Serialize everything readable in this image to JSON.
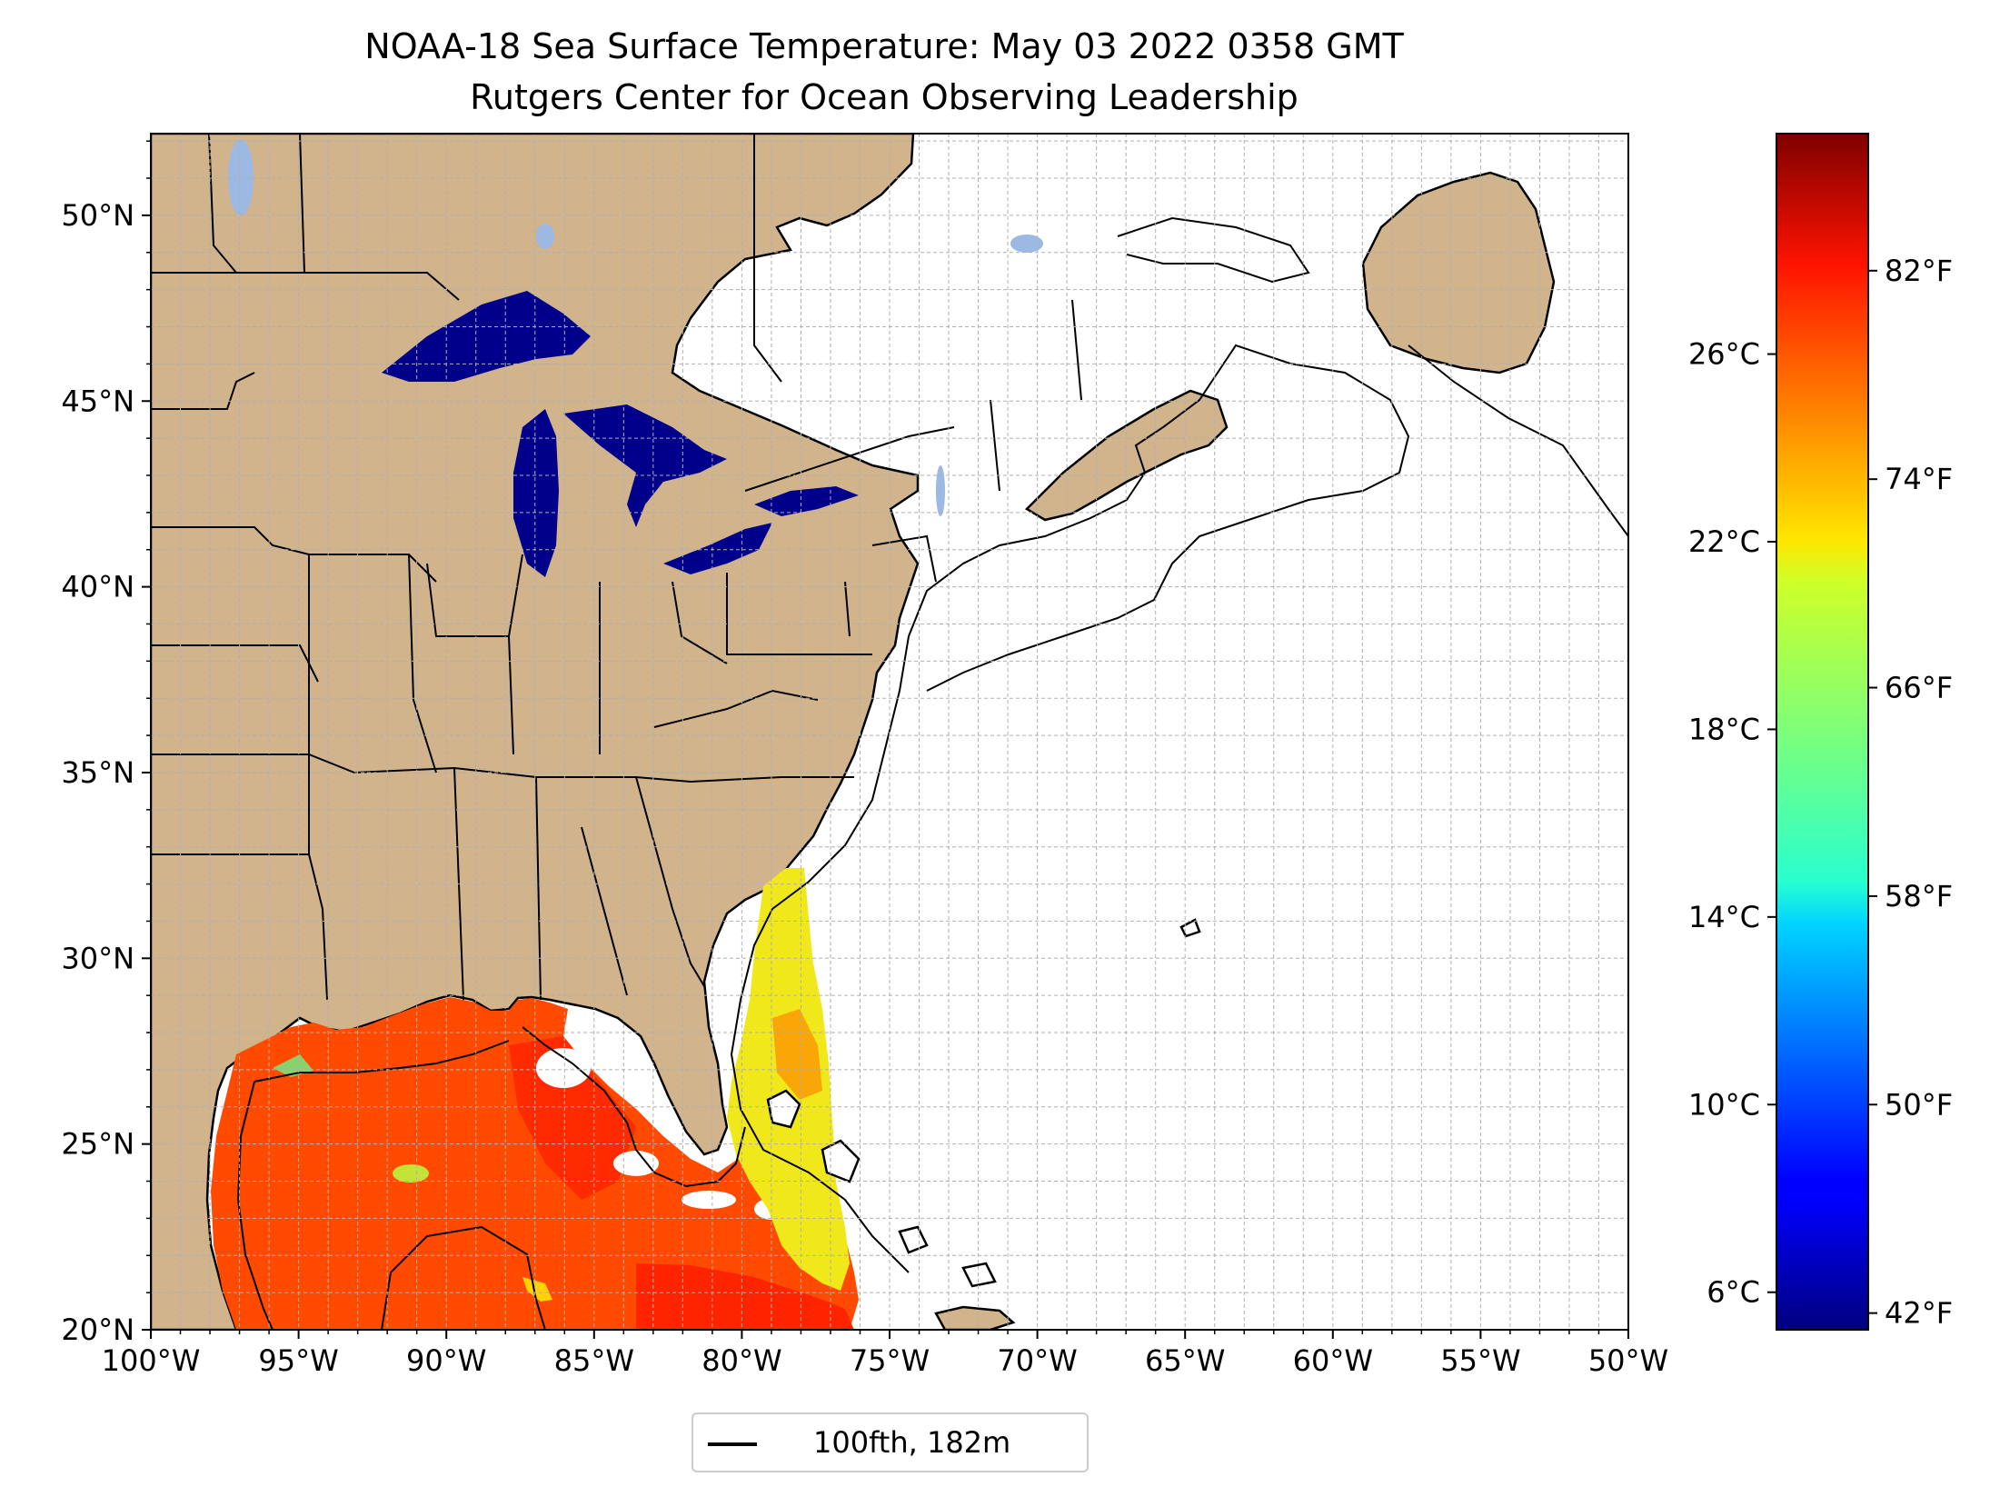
{
  "title": "NOAA-18 Sea Surface Temperature: May 03 2022 0358 GMT",
  "subtitle": "Rutgers Center for Ocean Observing Leadership",
  "map": {
    "projection": "lat-lon",
    "lon_range": [
      -100,
      -50
    ],
    "lat_range": [
      20,
      52.2
    ],
    "lon_ticks": [
      {
        "value": -100,
        "label": "100°W"
      },
      {
        "value": -95,
        "label": "95°W"
      },
      {
        "value": -90,
        "label": "90°W"
      },
      {
        "value": -85,
        "label": "85°W"
      },
      {
        "value": -80,
        "label": "80°W"
      },
      {
        "value": -75,
        "label": "75°W"
      },
      {
        "value": -70,
        "label": "70°W"
      },
      {
        "value": -65,
        "label": "65°W"
      },
      {
        "value": -60,
        "label": "60°W"
      },
      {
        "value": -55,
        "label": "55°W"
      },
      {
        "value": -50,
        "label": "50°W"
      }
    ],
    "lat_ticks": [
      {
        "value": 20,
        "label": "20°N"
      },
      {
        "value": 25,
        "label": "25°N"
      },
      {
        "value": 30,
        "label": "30°N"
      },
      {
        "value": 35,
        "label": "35°N"
      },
      {
        "value": 40,
        "label": "40°N"
      },
      {
        "value": 45,
        "label": "45°N"
      },
      {
        "value": 50,
        "label": "50°N"
      }
    ],
    "grid": "dashed, 1° spacing",
    "colors": {
      "land": "#d2b48c",
      "lakes": "#9bb9e3",
      "ocean": "#ffffff",
      "great_lakes_sst": "#00008b",
      "gulf_sst": "#ff4a00",
      "atlantic_sst": "#e8e800"
    }
  },
  "legend": {
    "label": "100fth, 182m",
    "position": "below-center"
  },
  "colorbar": {
    "colormap": "jet",
    "celsius_range": [
      5.2,
      30.7
    ],
    "celsius_ticks": [
      {
        "value": 6,
        "label": "6°C"
      },
      {
        "value": 10,
        "label": "10°C"
      },
      {
        "value": 14,
        "label": "14°C"
      },
      {
        "value": 18,
        "label": "18°C"
      },
      {
        "value": 22,
        "label": "22°C"
      },
      {
        "value": 26,
        "label": "26°C"
      }
    ],
    "fahrenheit_ticks": [
      {
        "value": 42,
        "label": "42°F"
      },
      {
        "value": 50,
        "label": "50°F"
      },
      {
        "value": 58,
        "label": "58°F"
      },
      {
        "value": 66,
        "label": "66°F"
      },
      {
        "value": 74,
        "label": "74°F"
      },
      {
        "value": 82,
        "label": "82°F"
      }
    ]
  }
}
